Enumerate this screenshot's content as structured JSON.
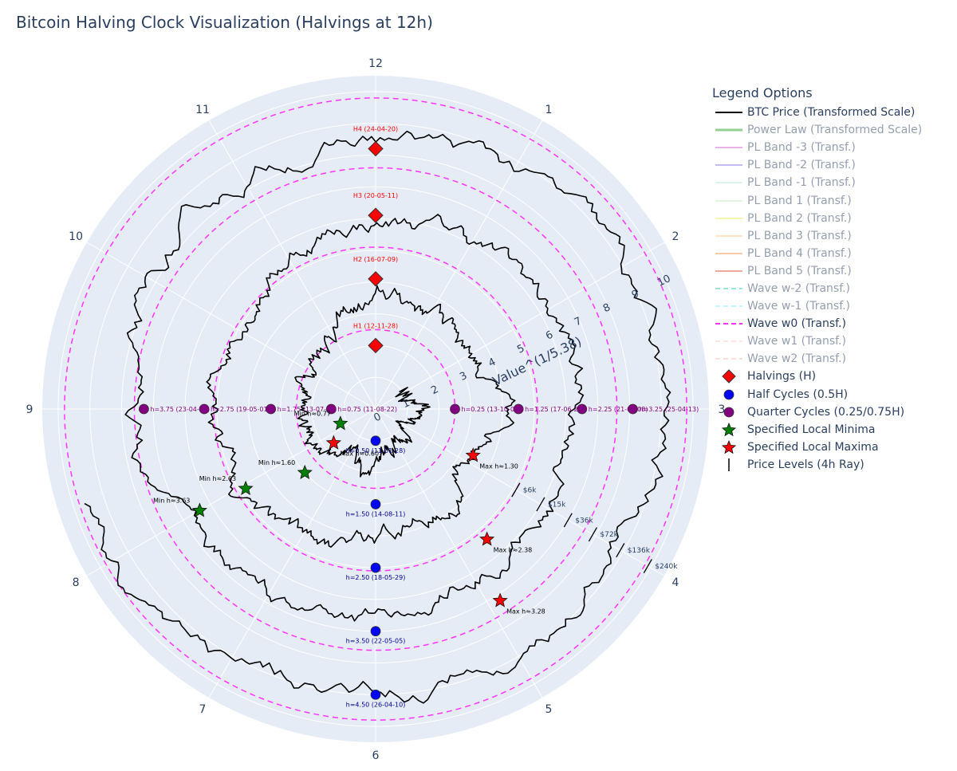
{
  "title": "Bitcoin Halving Clock Visualization (Halvings at 12h)",
  "colors": {
    "plot_bg": "#e5ecf6",
    "grid": "#ffffff",
    "price": "#000000",
    "wave0": "#ff33ff",
    "halving": "#ff0000",
    "half_cycle": "#0000ff",
    "quarter_cycle": "#800080",
    "minima": "#008000",
    "maxima": "#ff0000",
    "halving_label": "#ff0000",
    "half_label": "#00008b",
    "quarter_label": "#800080",
    "price_level_label": "#2a3f5f"
  },
  "chart_data": {
    "type": "polar",
    "angular_axis": {
      "direction": "clockwise",
      "rotation_zero": "12 at top",
      "tick_labels": [
        "12",
        "1",
        "2",
        "3",
        "4",
        "5",
        "6",
        "7",
        "8",
        "9",
        "10",
        "11"
      ]
    },
    "radial_axis": {
      "title": "Value^(1/5.38)",
      "range": [
        0,
        10.5
      ],
      "tick_labels": [
        "0",
        "1",
        "2",
        "3",
        "4",
        "5",
        "6",
        "7",
        "8",
        "9",
        "10"
      ],
      "tick_values": [
        0,
        1,
        2,
        3,
        4,
        5,
        6,
        7,
        8,
        9,
        10
      ],
      "grid": true
    },
    "wave_w0_circles_r": [
      2.5,
      5.1,
      7.6,
      9.8
    ],
    "price_spiral": {
      "name": "BTC Price (Transformed Scale)",
      "h_start": 0.15,
      "h_end": 3.7,
      "r_per_h": 2.55,
      "r_offset": 0.5
    },
    "halvings": [
      {
        "label": "H1 (12-11-28)",
        "h": 0.0,
        "r": 2.0
      },
      {
        "label": "H2 (16-07-09)",
        "h": 0.0,
        "r": 4.1
      },
      {
        "label": "H3 (20-05-11)",
        "h": 0.0,
        "r": 6.1
      },
      {
        "label": "H4 (24-04-20)",
        "h": 0.0,
        "r": 8.2
      }
    ],
    "half_cycles": [
      {
        "label": "h=0.50 (11-01-28)",
        "h": 6.0,
        "r": 1.0
      },
      {
        "label": "h=1.50 (14-08-11)",
        "h": 6.0,
        "r": 3.0
      },
      {
        "label": "h=2.50 (18-05-29)",
        "h": 6.0,
        "r": 5.0
      },
      {
        "label": "h=3.50 (22-05-05)",
        "h": 6.0,
        "r": 7.0
      },
      {
        "label": "h=4.50 (26-04-10)",
        "h": 6.0,
        "r": 9.0
      }
    ],
    "quarter_cycles": [
      {
        "label": "h=0.25 (13-10-09)",
        "h": 3.0,
        "r": 2.5
      },
      {
        "label": "h=1.25 (17-06-23)",
        "h": 3.0,
        "r": 4.5
      },
      {
        "label": "h=2.25 (21-05-08)",
        "h": 3.0,
        "r": 6.5
      },
      {
        "label": "h=3.25 (25-04-13)",
        "h": 3.0,
        "r": 8.1
      },
      {
        "label": "h=0.75 (11-08-22)",
        "h": 9.0,
        "r": 1.4
      },
      {
        "label": "h=1.75 (13-07-20)",
        "h": 9.0,
        "r": 3.3
      },
      {
        "label": "h=2.75 (19-05-01)",
        "h": 9.0,
        "r": 5.4
      },
      {
        "label": "h=3.75 (23-04-16)",
        "h": 9.0,
        "r": 7.3
      }
    ],
    "local_minima": [
      {
        "label": "Min h≈0.77",
        "h": 8.25,
        "r": 1.2
      },
      {
        "label": "Min h≈1.60",
        "h": 7.6,
        "r": 3.0
      },
      {
        "label": "Min h≈2.63",
        "h": 7.95,
        "r": 4.8
      },
      {
        "label": "Min h≈3.63",
        "h": 8.0,
        "r": 6.4
      }
    ],
    "local_maxima": [
      {
        "label": "Max h≈0.60",
        "h": 7.7,
        "r": 1.7
      },
      {
        "label": "Max h≈1.30",
        "h": 3.85,
        "r": 3.4
      },
      {
        "label": "Max h≈2.38",
        "h": 4.65,
        "r": 5.4
      },
      {
        "label": "Max h≈3.28",
        "h": 4.9,
        "r": 7.2
      }
    ],
    "price_levels": [
      {
        "label": "$6k",
        "r": 5.1
      },
      {
        "label": "$15k",
        "r": 6.0
      },
      {
        "label": "$36k",
        "r": 7.0
      },
      {
        "label": "$72k",
        "r": 7.9
      },
      {
        "label": "$136k",
        "r": 8.9
      },
      {
        "label": "$240k",
        "r": 9.9
      }
    ]
  },
  "legend": {
    "title": "Legend Options",
    "items": [
      {
        "label": "BTC Price (Transformed Scale)",
        "color": "#000000",
        "style": "line",
        "active": true
      },
      {
        "label": "Power Law (Transformed Scale)",
        "color": "#2ca02c",
        "style": "line-thick",
        "active": false
      },
      {
        "label": "PL Band -3 (Transf.)",
        "color": "#dd66dd",
        "style": "line",
        "active": false
      },
      {
        "label": "PL Band -2 (Transf.)",
        "color": "#8877ee",
        "style": "line",
        "active": false
      },
      {
        "label": "PL Band -1 (Transf.)",
        "color": "#bbeedd",
        "style": "line",
        "active": false
      },
      {
        "label": "PL Band 1 (Transf.)",
        "color": "#c8eec0",
        "style": "line",
        "active": false
      },
      {
        "label": "PL Band 2 (Transf.)",
        "color": "#eeee66",
        "style": "line",
        "active": false
      },
      {
        "label": "PL Band 3 (Transf.)",
        "color": "#ffcc88",
        "style": "line",
        "active": false
      },
      {
        "label": "PL Band 4 (Transf.)",
        "color": "#ee9955",
        "style": "line",
        "active": false
      },
      {
        "label": "PL Band 5 (Transf.)",
        "color": "#dd5544",
        "style": "line",
        "active": false
      },
      {
        "label": "Wave w-2 (Transf.)",
        "color": "#33ccbb",
        "style": "dash",
        "active": false
      },
      {
        "label": "Wave w-1 (Transf.)",
        "color": "#88eeee",
        "style": "dash",
        "active": false
      },
      {
        "label": "Wave w0 (Transf.)",
        "color": "#ff33ff",
        "style": "dash",
        "active": true
      },
      {
        "label": "Wave w1 (Transf.)",
        "color": "#ffcccc",
        "style": "dash",
        "active": false
      },
      {
        "label": "Wave w2 (Transf.)",
        "color": "#ffbbbb",
        "style": "dash",
        "active": false
      },
      {
        "label": "Halvings (H)",
        "color": "#ff0000",
        "style": "diamond",
        "active": true
      },
      {
        "label": "Half Cycles (0.5H)",
        "color": "#0000ff",
        "style": "circle",
        "active": true
      },
      {
        "label": "Quarter Cycles (0.25/0.75H)",
        "color": "#800080",
        "style": "circle",
        "active": true
      },
      {
        "label": "Specified Local Minima",
        "color": "#008000",
        "style": "star",
        "active": true
      },
      {
        "label": "Specified Local Maxima",
        "color": "#ff0000",
        "style": "star",
        "active": true
      },
      {
        "label": "Price Levels (4h Ray)",
        "color": "#000000",
        "style": "tick",
        "active": true
      }
    ]
  }
}
